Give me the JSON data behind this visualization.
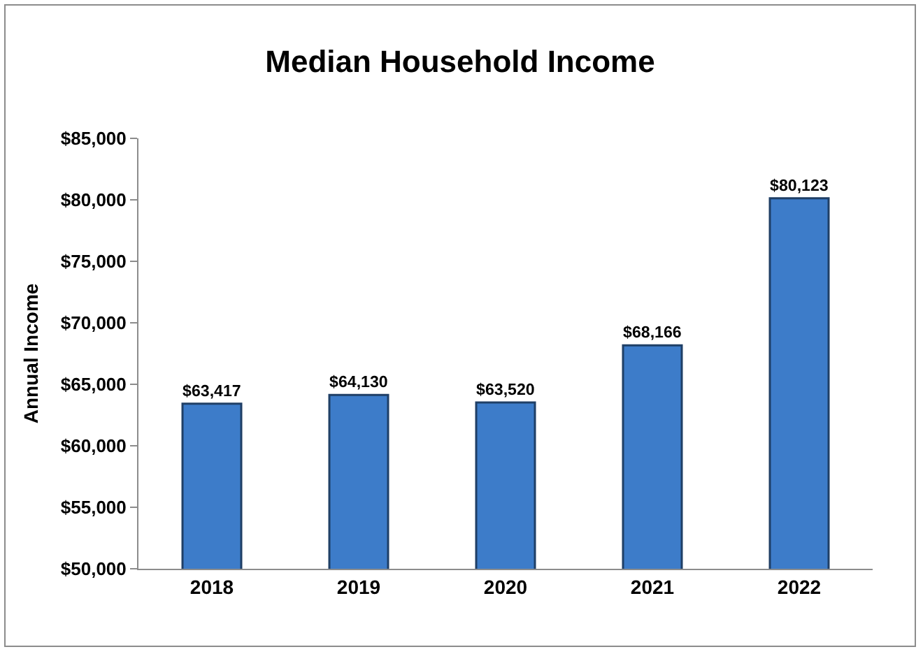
{
  "chart_data": {
    "type": "bar",
    "title": "Median Household Income",
    "ylabel": "Annual Income",
    "categories": [
      "2018",
      "2019",
      "2020",
      "2021",
      "2022"
    ],
    "values": [
      63417,
      64130,
      63520,
      68166,
      80123
    ],
    "value_labels": [
      "$63,417",
      "$64,130",
      "$63,520",
      "$68,166",
      "$80,123"
    ],
    "color": "#3d7cc9",
    "ylim": [
      50000,
      85000
    ],
    "yticks": [
      {
        "value": 50000,
        "label": "$50,000"
      },
      {
        "value": 55000,
        "label": "$55,000"
      },
      {
        "value": 60000,
        "label": "$60,000"
      },
      {
        "value": 65000,
        "label": "$65,000"
      },
      {
        "value": 70000,
        "label": "$70,000"
      },
      {
        "value": 75000,
        "label": "$75,000"
      },
      {
        "value": 80000,
        "label": "$80,000"
      },
      {
        "value": 85000,
        "label": "$85,000"
      }
    ]
  }
}
